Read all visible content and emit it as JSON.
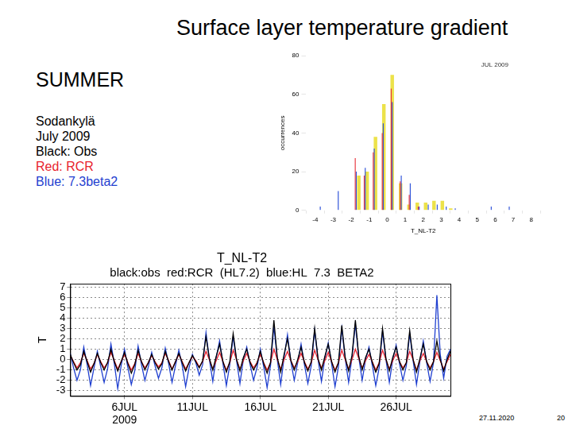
{
  "page": {
    "title": "Surface layer temperature gradient",
    "season": "SUMMER",
    "lines": [
      "Sodankylä",
      "July 2009",
      "Black: Obs",
      "Red: RCR",
      "Blue: 7.3beta2"
    ],
    "footer_date": "27.11.2020",
    "page_number": "20"
  },
  "chart_data": [
    {
      "type": "bar",
      "annotation": "JUL 2009",
      "x_label": "T_NL-T2",
      "y_label": "occurrences",
      "bins": [
        -4,
        -3.5,
        -3,
        -2.5,
        -2,
        -1.5,
        -1,
        -0.5,
        0,
        0.5,
        1,
        1.5,
        2,
        2.5,
        3,
        3.5,
        4,
        4.5,
        5,
        5.5,
        6,
        6.5,
        7,
        7.5,
        8
      ],
      "series": [
        {
          "name": "Obs",
          "color": "#ece24a",
          "values": [
            0,
            0,
            0,
            0,
            18,
            20,
            38,
            55,
            70,
            14,
            3,
            4,
            4,
            5,
            5,
            1,
            0,
            0,
            0,
            0,
            0,
            0,
            0,
            0
          ]
        },
        {
          "name": "RCR",
          "color": "#e8343c",
          "values": [
            0,
            0,
            0,
            0,
            27,
            18,
            30,
            40,
            63,
            15,
            8,
            2,
            0,
            0,
            0,
            0,
            0,
            0,
            0,
            0,
            0,
            0,
            0,
            0
          ]
        },
        {
          "name": "7.3beta2",
          "color": "#2a4fd8",
          "values": [
            2,
            0,
            10,
            0,
            20,
            22,
            32,
            45,
            56,
            18,
            14,
            2,
            3,
            3,
            2,
            1,
            0,
            0,
            0,
            2,
            0,
            2,
            0,
            0
          ]
        }
      ],
      "xlim": [
        -4,
        8
      ],
      "xticks": [
        -4,
        -3,
        -2,
        -1,
        0,
        1,
        2,
        3,
        4,
        5,
        6,
        7,
        8
      ],
      "ylim": [
        0,
        80
      ],
      "yticks": [
        0,
        20,
        40,
        60,
        80
      ],
      "grid": false,
      "legend": false
    },
    {
      "type": "line",
      "title": "T_NL-T2",
      "subtitle": "black:obs  red:RCR  (HL7.2)  blue:HL  7.3  BETA2",
      "y_label": "T",
      "x": [
        2,
        2.25,
        2.5,
        2.75,
        3,
        3.25,
        3.5,
        3.75,
        4,
        4.25,
        4.5,
        4.75,
        5,
        5.25,
        5.5,
        5.75,
        6,
        6.25,
        6.5,
        6.75,
        7,
        7.25,
        7.5,
        7.75,
        8,
        8.25,
        8.5,
        8.75,
        9,
        9.25,
        9.5,
        9.75,
        10,
        10.25,
        10.5,
        10.75,
        11,
        11.25,
        11.5,
        11.75,
        12,
        12.25,
        12.5,
        12.75,
        13,
        13.25,
        13.5,
        13.75,
        14,
        14.25,
        14.5,
        14.75,
        15,
        15.25,
        15.5,
        15.75,
        16,
        16.25,
        16.5,
        16.75,
        17,
        17.25,
        17.5,
        17.75,
        18,
        18.25,
        18.5,
        18.75,
        19,
        19.25,
        19.5,
        19.75,
        20,
        20.25,
        20.5,
        20.75,
        21,
        21.25,
        21.5,
        21.75,
        22,
        22.25,
        22.5,
        22.75,
        23,
        23.25,
        23.5,
        23.75,
        24,
        24.25,
        24.5,
        24.75,
        25,
        25.25,
        25.5,
        25.75,
        26,
        26.25,
        26.5,
        26.75,
        27,
        27.25,
        27.5,
        27.75,
        28,
        28.25,
        28.5,
        28.75,
        29,
        29.25,
        29.5,
        29.75,
        30
      ],
      "series": [
        {
          "name": "obs",
          "color": "#000000",
          "values": [
            0.5,
            -0.3,
            -1.0,
            -0.5,
            0.8,
            -0.2,
            -1.2,
            -0.4,
            0.6,
            -0.3,
            -1.0,
            -0.3,
            1.0,
            -0.2,
            -1.1,
            -0.2,
            0.7,
            -0.4,
            -1.3,
            -0.5,
            0.9,
            -0.2,
            -1.0,
            -0.3,
            0.5,
            -0.3,
            -0.9,
            -0.4,
            0.8,
            -0.2,
            -1.0,
            -0.2,
            0.6,
            -0.3,
            -1.1,
            -0.3,
            0.4,
            -0.2,
            -0.8,
            -0.1,
            2.2,
            0.1,
            -1.0,
            0.3,
            1.5,
            -0.2,
            -1.2,
            -0.2,
            2.5,
            0.0,
            -1.1,
            0.2,
            1.0,
            -0.3,
            -1.0,
            -0.4,
            0.8,
            -0.4,
            -1.3,
            -0.3,
            3.8,
            0.2,
            -1.2,
            0.5,
            2.0,
            -0.1,
            -1.0,
            0.0,
            1.2,
            -0.3,
            -1.1,
            -0.2,
            3.0,
            0.1,
            -1.0,
            0.3,
            1.5,
            -0.2,
            -1.2,
            -0.3,
            3.3,
            0.2,
            -1.1,
            0.4,
            3.8,
            0.3,
            -1.0,
            0.2,
            1.0,
            -0.3,
            -1.2,
            -0.4,
            3.0,
            0.1,
            -1.1,
            0.2,
            1.2,
            -0.2,
            -1.0,
            -0.3,
            2.8,
            0.0,
            -1.2,
            0.1,
            1.5,
            -0.2,
            -1.0,
            -0.2,
            1.8,
            0.0,
            -1.1,
            0.0,
            0.8
          ]
        },
        {
          "name": "RCR",
          "color": "#e8232e",
          "values": [
            0.4,
            -0.2,
            -0.8,
            -0.3,
            0.6,
            -0.1,
            -0.9,
            -0.4,
            0.5,
            -0.2,
            -0.8,
            -0.3,
            0.7,
            -0.1,
            -0.9,
            -0.2,
            0.5,
            -0.3,
            -1.0,
            -0.4,
            0.6,
            -0.2,
            -0.8,
            -0.3,
            0.4,
            -0.2,
            -0.7,
            -0.3,
            0.6,
            -0.1,
            -0.9,
            -0.2,
            0.5,
            -0.2,
            -0.9,
            -0.3,
            0.3,
            -0.1,
            -0.7,
            -0.2,
            0.8,
            0.0,
            -0.9,
            -0.1,
            0.7,
            -0.2,
            -1.0,
            -0.3,
            0.9,
            0.0,
            -0.9,
            -0.1,
            0.6,
            -0.2,
            -0.8,
            -0.3,
            0.5,
            -0.3,
            -1.0,
            -0.3,
            1.0,
            0.0,
            -0.9,
            0.0,
            0.8,
            -0.1,
            -0.8,
            -0.2,
            0.6,
            -0.2,
            -0.9,
            -0.3,
            0.9,
            0.0,
            -0.8,
            -0.1,
            0.7,
            -0.2,
            -1.0,
            -0.3,
            0.9,
            0.0,
            -0.9,
            0.0,
            1.0,
            0.1,
            -0.8,
            -0.1,
            0.5,
            -0.2,
            -1.0,
            -0.3,
            0.9,
            0.0,
            -0.9,
            -0.1,
            0.6,
            -0.2,
            -0.8,
            -0.3,
            0.8,
            0.0,
            -1.0,
            -0.1,
            0.6,
            -0.2,
            -0.8,
            -0.2,
            0.7,
            -0.1,
            -0.9,
            -0.2,
            0.5
          ]
        },
        {
          "name": "HL 7.3 BETA2",
          "color": "#1f3fd0",
          "values": [
            0.6,
            -0.8,
            -2.0,
            -1.0,
            1.2,
            -0.5,
            -2.5,
            -0.8,
            0.8,
            -0.7,
            -2.2,
            -0.9,
            1.5,
            -0.4,
            -2.8,
            -0.6,
            1.0,
            -0.8,
            -2.4,
            -1.1,
            1.3,
            -0.5,
            -2.0,
            -0.7,
            0.7,
            -0.6,
            -1.8,
            -0.8,
            1.1,
            -0.4,
            -2.2,
            -0.6,
            0.9,
            -0.6,
            -2.6,
            -0.8,
            0.5,
            -0.3,
            -1.5,
            -0.5,
            2.6,
            0.0,
            -2.1,
            0.2,
            1.8,
            -0.4,
            -2.5,
            -0.5,
            2.2,
            -0.1,
            -2.3,
            0.0,
            1.2,
            -0.5,
            -2.0,
            -0.8,
            1.0,
            -0.7,
            -2.7,
            -0.6,
            3.2,
            0.0,
            -2.4,
            0.2,
            2.4,
            -0.2,
            -2.0,
            -0.3,
            1.5,
            -0.5,
            -2.3,
            -0.6,
            2.8,
            0.0,
            -2.1,
            0.1,
            1.6,
            -0.4,
            -2.6,
            -0.7,
            3.0,
            0.1,
            -2.2,
            0.2,
            3.4,
            0.2,
            -2.0,
            0.0,
            1.2,
            -0.6,
            -2.5,
            -0.8,
            2.7,
            0.0,
            -2.2,
            0.0,
            1.4,
            -0.4,
            -2.0,
            -0.6,
            2.5,
            -0.1,
            -2.4,
            -0.2,
            1.8,
            -0.3,
            -2.1,
            -0.3,
            6.2,
            0.5,
            -1.8,
            0.3,
            1.0
          ]
        }
      ],
      "xlim": [
        2,
        30
      ],
      "xticks": [
        {
          "value": 6,
          "label": "6JUL\n2009"
        },
        {
          "value": 11,
          "label": "11JUL"
        },
        {
          "value": 16,
          "label": "16JUL"
        },
        {
          "value": 21,
          "label": "21JUL"
        },
        {
          "value": 26,
          "label": "26JUL"
        }
      ],
      "ylim": [
        -3.5,
        7.3
      ],
      "yticks": [
        -3,
        -2,
        -1,
        0,
        1,
        2,
        3,
        4,
        5,
        6,
        7
      ],
      "grid": true,
      "legend": false
    }
  ]
}
